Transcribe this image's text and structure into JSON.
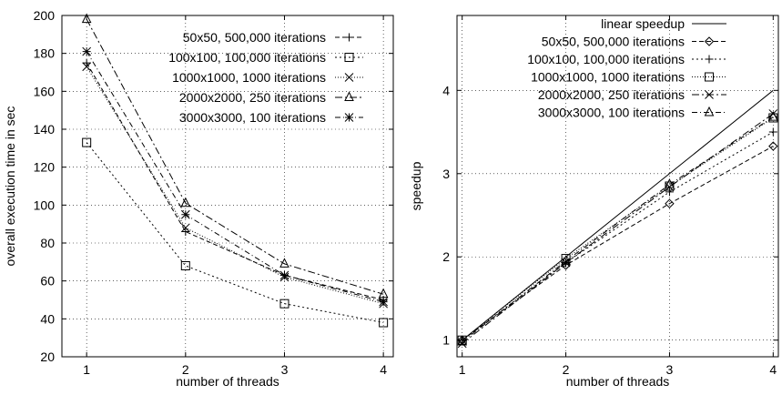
{
  "chart_data": [
    {
      "type": "line",
      "xlabel": "number of threads",
      "ylabel": "overall execution time in sec",
      "x": [
        1,
        2,
        3,
        4
      ],
      "xlim": [
        0.75,
        4.1
      ],
      "ylim": [
        20,
        200
      ],
      "xticks": [
        "1",
        "2",
        "3",
        "4"
      ],
      "yticks": [
        "20",
        "40",
        "60",
        "80",
        "100",
        "120",
        "140",
        "160",
        "180",
        "200"
      ],
      "grid": true,
      "legend_position": "top-right",
      "series": [
        {
          "name": "50x50,   500,000 iterations",
          "marker": "plus",
          "dash": "5,3",
          "values": [
            175,
            86,
            63,
            50
          ]
        },
        {
          "name": "100x100,  100,000 iterations",
          "marker": "square",
          "dash": "2,3",
          "values": [
            133,
            68,
            48,
            38
          ]
        },
        {
          "name": "1000x1000, 1000 iterations",
          "marker": "cross",
          "dash": "1,2",
          "values": [
            173,
            88,
            62,
            48
          ]
        },
        {
          "name": "2000x2000, 250 iterations",
          "marker": "triangle",
          "dash": "8,3,2,3",
          "values": [
            198,
            101,
            69,
            53
          ]
        },
        {
          "name": "3000x3000,  100 iterations",
          "marker": "star",
          "dash": "6,3,1,3",
          "values": [
            181,
            95,
            63,
            49
          ]
        }
      ]
    },
    {
      "type": "line",
      "xlabel": "number of threads",
      "ylabel": "speedup",
      "x": [
        1,
        2,
        3,
        4
      ],
      "xlim": [
        0.95,
        4.05
      ],
      "ylim": [
        0.8,
        4.9
      ],
      "xticks": [
        "1",
        "2",
        "3",
        "4"
      ],
      "yticks": [
        "1",
        "2",
        "3",
        "4"
      ],
      "grid": true,
      "legend_position": "top-left",
      "series": [
        {
          "name": "linear speedup",
          "marker": "none",
          "dash": "",
          "values": [
            1,
            2,
            3,
            4
          ]
        },
        {
          "name": "50x50,   500,000 iterations",
          "marker": "diamond",
          "dash": "5,3",
          "values": [
            1,
            1.9,
            2.64,
            3.33
          ]
        },
        {
          "name": "100x100,  100,000 iterations",
          "marker": "plus",
          "dash": "2,3",
          "values": [
            1,
            1.93,
            2.78,
            3.5
          ]
        },
        {
          "name": "1000x1000, 1000 iterations",
          "marker": "square",
          "dash": "1,2",
          "values": [
            1,
            1.98,
            2.85,
            3.67
          ]
        },
        {
          "name": "2000x2000, 250 iterations",
          "marker": "cross",
          "dash": "8,3,2,3",
          "values": [
            0.96,
            1.93,
            2.84,
            3.72
          ]
        },
        {
          "name": "3000x3000,  100 iterations",
          "marker": "triangle",
          "dash": "6,3,1,3",
          "values": [
            0.98,
            1.95,
            2.87,
            3.68
          ]
        }
      ]
    }
  ]
}
